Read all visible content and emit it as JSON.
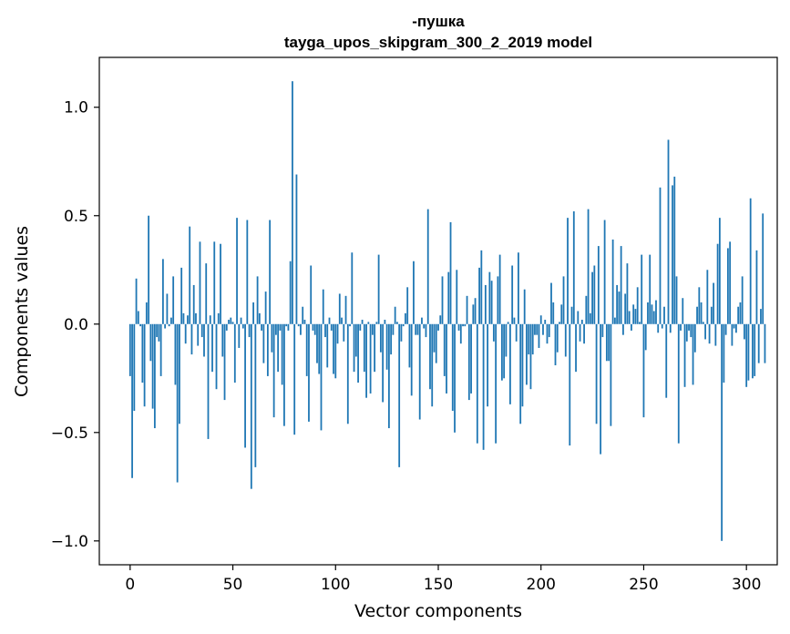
{
  "chart_data": {
    "type": "bar",
    "title": "-пушка",
    "subtitle": "tayga_upos_skipgram_300_2_2019 model",
    "xlabel": "Vector components",
    "ylabel": "Components values",
    "xlim": [
      -15,
      315
    ],
    "ylim": [
      -1.11,
      1.23
    ],
    "xticks": [
      0,
      50,
      100,
      150,
      200,
      250,
      300
    ],
    "xtick_labels": [
      "0",
      "50",
      "100",
      "150",
      "200",
      "250",
      "300"
    ],
    "yticks": [
      1.0,
      0.5,
      0.0,
      -0.5,
      -1.0
    ],
    "ytick_labels": [
      "1.0",
      "0.5",
      "0.0",
      "−0.5",
      "−1.0"
    ],
    "bar_color": "#1f77b4",
    "values": [
      -0.24,
      -0.71,
      -0.4,
      0.21,
      0.06,
      -0.01,
      -0.27,
      -0.38,
      0.1,
      0.5,
      -0.17,
      -0.39,
      -0.48,
      -0.06,
      -0.08,
      -0.24,
      0.3,
      -0.02,
      0.14,
      -0.01,
      0.03,
      0.22,
      -0.28,
      -0.73,
      -0.46,
      0.26,
      0.05,
      -0.09,
      0.04,
      0.45,
      -0.14,
      0.18,
      0.05,
      -0.1,
      0.38,
      -0.06,
      -0.15,
      0.28,
      -0.53,
      0.04,
      -0.22,
      0.38,
      -0.3,
      0.05,
      0.37,
      -0.15,
      -0.35,
      -0.03,
      0.02,
      0.03,
      0.01,
      -0.27,
      0.49,
      -0.11,
      0.03,
      -0.02,
      -0.57,
      0.48,
      -0.06,
      -0.76,
      0.1,
      -0.66,
      0.22,
      0.05,
      -0.03,
      -0.18,
      0.15,
      -0.24,
      0.48,
      -0.13,
      -0.43,
      -0.05,
      -0.22,
      -0.03,
      -0.28,
      -0.47,
      -0.01,
      -0.03,
      0.29,
      1.12,
      -0.51,
      0.69,
      -0.01,
      -0.05,
      0.08,
      0.02,
      -0.24,
      -0.45,
      0.27,
      -0.03,
      -0.05,
      -0.18,
      -0.23,
      -0.49,
      0.16,
      -0.06,
      -0.2,
      0.03,
      -0.03,
      -0.23,
      -0.25,
      -0.09,
      0.14,
      0.03,
      -0.08,
      0.13,
      -0.46,
      -0.01,
      0.33,
      -0.22,
      -0.15,
      -0.27,
      -0.03,
      0.02,
      -0.22,
      -0.34,
      0.01,
      -0.32,
      -0.05,
      -0.22,
      0.01,
      0.32,
      -0.13,
      -0.36,
      0.02,
      -0.21,
      -0.48,
      -0.14,
      -0.05,
      0.08,
      0.01,
      -0.66,
      -0.08,
      -0.01,
      0.05,
      0.17,
      -0.2,
      -0.33,
      0.29,
      -0.05,
      -0.05,
      -0.44,
      0.03,
      -0.02,
      -0.06,
      0.53,
      -0.3,
      -0.38,
      -0.13,
      -0.18,
      -0.03,
      0.04,
      0.22,
      -0.24,
      -0.32,
      0.24,
      0.47,
      -0.4,
      -0.5,
      0.25,
      -0.03,
      -0.09,
      -0.01,
      -0.01,
      0.13,
      -0.35,
      -0.32,
      0.09,
      0.12,
      -0.55,
      0.26,
      0.34,
      -0.58,
      0.18,
      -0.38,
      0.24,
      0.2,
      -0.08,
      -0.55,
      0.22,
      0.32,
      -0.26,
      -0.25,
      -0.15,
      0.01,
      -0.37,
      0.27,
      0.03,
      -0.08,
      0.33,
      -0.46,
      -0.38,
      0.16,
      -0.28,
      -0.14,
      -0.3,
      -0.14,
      -0.05,
      -0.05,
      -0.11,
      0.04,
      -0.05,
      0.02,
      -0.09,
      -0.06,
      0.19,
      0.1,
      -0.19,
      -0.13,
      0.01,
      0.09,
      0.22,
      -0.15,
      0.49,
      -0.56,
      0.08,
      0.52,
      -0.22,
      0.06,
      -0.08,
      0.02,
      -0.09,
      0.13,
      0.53,
      0.05,
      0.24,
      0.27,
      -0.46,
      0.36,
      -0.6,
      -0.06,
      0.48,
      -0.17,
      -0.17,
      -0.47,
      0.39,
      0.03,
      0.18,
      0.15,
      0.36,
      -0.05,
      0.14,
      0.28,
      0.06,
      -0.03,
      0.09,
      0.07,
      0.17,
      0.01,
      0.32,
      -0.43,
      -0.12,
      0.1,
      0.32,
      0.09,
      0.06,
      0.11,
      -0.04,
      0.63,
      -0.02,
      0.08,
      -0.34,
      0.85,
      -0.04,
      0.64,
      0.68,
      0.22,
      -0.55,
      -0.03,
      0.12,
      -0.29,
      -0.08,
      -0.03,
      -0.06,
      -0.28,
      -0.13,
      0.08,
      0.17,
      0.1,
      0.01,
      -0.07,
      0.25,
      -0.09,
      0.08,
      0.19,
      -0.1,
      0.37,
      0.49,
      -1.0,
      -0.27,
      -0.05,
      0.35,
      0.38,
      -0.1,
      -0.02,
      -0.04,
      0.08,
      0.1,
      0.22,
      -0.07,
      -0.29,
      -0.26,
      0.58,
      -0.25,
      -0.24,
      0.34,
      -0.18,
      0.07,
      0.51,
      -0.18
    ]
  }
}
